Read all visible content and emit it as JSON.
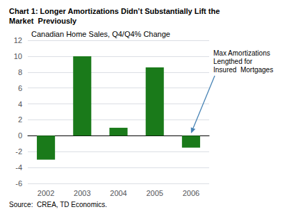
{
  "chart_data": {
    "type": "bar",
    "title": "Chart 1: Longer Amortizations Didn’t Substantially Lift the\nMarket  Previously",
    "subtitle": "Canadian Home Sales, Q4/Q4% Change",
    "categories": [
      "2002",
      "2003",
      "2004",
      "2005",
      "2006"
    ],
    "values": [
      -3.0,
      10.0,
      1.0,
      8.6,
      -1.5
    ],
    "color": "#1a7a1a",
    "ylim": [
      -6,
      12
    ],
    "yticks": [
      -6,
      -4,
      -2,
      0,
      2,
      4,
      6,
      8,
      10,
      12
    ],
    "grid": true,
    "annotations": [
      {
        "text": "Max Amortizations\nLengthed for\nInsured  Mortgages",
        "x": "2006",
        "y": 0.3
      }
    ],
    "source": "Source:  CREA, TD Economics."
  }
}
